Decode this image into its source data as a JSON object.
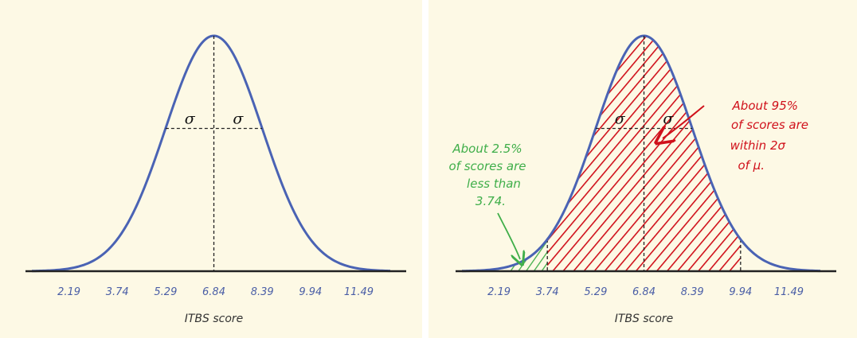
{
  "chart_data": [
    {
      "type": "area",
      "distribution": "normal",
      "mean": 6.84,
      "sd": 1.55,
      "xlim": [
        1.0,
        12.5
      ],
      "tick_labels": [
        "2.19",
        "3.74",
        "5.29",
        "6.84",
        "8.39",
        "9.94",
        "11.49"
      ],
      "tick_values": [
        2.19,
        3.74,
        5.29,
        6.84,
        8.39,
        9.94,
        11.49
      ],
      "xlabel": "ITBS score",
      "sigma_labels": [
        "σ",
        "σ"
      ],
      "colors": {
        "background": "#fdf9e5",
        "curve": "#4a63b4",
        "axis": "#222222"
      }
    },
    {
      "type": "area",
      "distribution": "normal",
      "mean": 6.84,
      "sd": 1.55,
      "xlim": [
        1.0,
        12.5
      ],
      "tick_labels": [
        "2.19",
        "3.74",
        "5.29",
        "6.84",
        "8.39",
        "9.94",
        "11.49"
      ],
      "tick_values": [
        2.19,
        3.74,
        5.29,
        6.84,
        8.39,
        9.94,
        11.49
      ],
      "xlabel": "ITBS score",
      "sigma_labels": [
        "σ",
        "σ"
      ],
      "shaded_regions": [
        {
          "from": 2.5,
          "to": 3.74,
          "color": "#3fae49"
        },
        {
          "from": 3.74,
          "to": 9.94,
          "color": "#d0111b"
        }
      ],
      "annotations": {
        "green": [
          "About 2.5%",
          "of scores are",
          "less than",
          "3.74."
        ],
        "red": [
          "About 95%",
          "of scores are",
          "within 2σ",
          "of μ."
        ]
      },
      "colors": {
        "background": "#fdf9e5",
        "curve": "#4a63b4",
        "axis": "#222222",
        "green": "#3fae49",
        "red": "#d0111b"
      }
    }
  ]
}
